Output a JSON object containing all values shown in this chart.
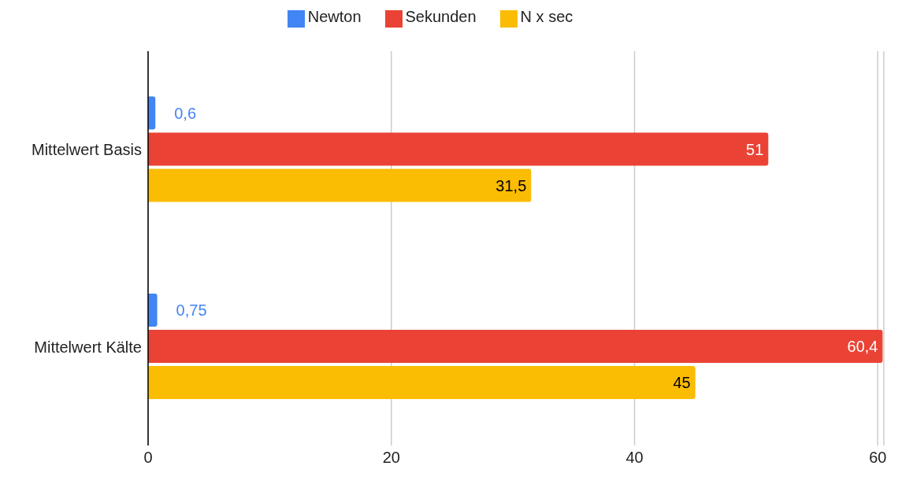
{
  "chart_data": {
    "type": "bar",
    "orientation": "horizontal",
    "categories": [
      "Mittelwert Basis",
      "Mittelwert Kälte"
    ],
    "series": [
      {
        "name": "Newton",
        "color": "#4285f4",
        "values": [
          0.6,
          0.75
        ],
        "value_labels": [
          "0,6",
          "0,75"
        ]
      },
      {
        "name": "Sekunden",
        "color": "#ea4335",
        "values": [
          51,
          60.4
        ],
        "value_labels": [
          "51",
          "60,4"
        ]
      },
      {
        "name": "N x sec",
        "color": "#fbbc04",
        "values": [
          31.5,
          45
        ],
        "value_labels": [
          "31,5",
          "45"
        ]
      }
    ],
    "xlim": [
      0,
      60.5
    ],
    "xticks": [
      0,
      20,
      40,
      60
    ],
    "grid": "x",
    "legend": "top"
  }
}
